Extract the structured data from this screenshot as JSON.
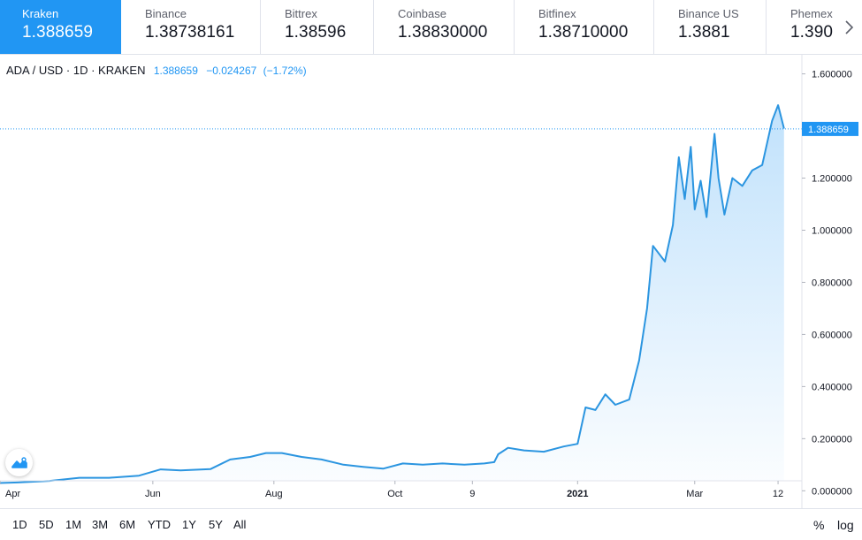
{
  "exchanges": [
    {
      "name": "Kraken",
      "price": "1.388659",
      "active": true
    },
    {
      "name": "Binance",
      "price": "1.38738161"
    },
    {
      "name": "Bittrex",
      "price": "1.38596"
    },
    {
      "name": "Coinbase",
      "price": "1.38830000"
    },
    {
      "name": "Bitfinex",
      "price": "1.38710000"
    },
    {
      "name": "Binance US",
      "price": "1.3881"
    },
    {
      "name": "Phemex",
      "price": "1.390"
    }
  ],
  "legend": {
    "symbol": "ADA / USD · 1D · KRAKEN",
    "last": "1.388659",
    "change": "−0.024267",
    "change_pct": "(−1.72%)"
  },
  "ranges": [
    "1D",
    "5D",
    "1M",
    "3M",
    "6M",
    "YTD",
    "1Y",
    "5Y",
    "All"
  ],
  "toolbar": {
    "percent_label": "%",
    "log_label": "log"
  },
  "colors": {
    "accent": "#2196f3",
    "line": "#2b95e0",
    "text": "#131722"
  },
  "icons": {
    "tabs_next": "chevron-right-icon",
    "logo": "tradingview-logo-icon"
  },
  "chart_data": {
    "type": "area",
    "title": "ADA / USD · 1D · KRAKEN",
    "xlabel": "",
    "ylabel": "",
    "ylim": [
      -0.06,
      1.68
    ],
    "y_ticks": [
      "1.600000",
      "1.400000",
      "1.200000",
      "1.000000",
      "0.800000",
      "0.600000",
      "0.400000",
      "0.200000",
      "0.000000"
    ],
    "x_ticks": [
      "Apr",
      "Jun",
      "Aug",
      "Oct",
      "9",
      "2021",
      "Mar",
      "12"
    ],
    "last_price_label": "1.388659",
    "last_price": 1.388659,
    "grid": false,
    "series": [
      {
        "x": [
          "2020-03-16",
          "2020-03-25",
          "2020-04-10",
          "2020-04-25",
          "2020-05-10",
          "2020-05-25",
          "2020-06-05",
          "2020-06-15",
          "2020-06-30",
          "2020-07-10",
          "2020-07-20",
          "2020-07-28",
          "2020-08-05",
          "2020-08-15",
          "2020-08-25",
          "2020-09-05",
          "2020-09-15",
          "2020-09-25",
          "2020-10-05",
          "2020-10-15",
          "2020-10-25",
          "2020-11-05",
          "2020-11-15",
          "2020-11-20",
          "2020-11-22",
          "2020-11-27",
          "2020-12-05",
          "2020-12-15",
          "2020-12-25",
          "2021-01-01",
          "2021-01-05",
          "2021-01-10",
          "2021-01-15",
          "2021-01-20",
          "2021-01-27",
          "2021-02-01",
          "2021-02-05",
          "2021-02-08",
          "2021-02-14",
          "2021-02-18",
          "2021-02-21",
          "2021-02-24",
          "2021-02-27",
          "2021-03-01",
          "2021-03-04",
          "2021-03-07",
          "2021-03-11",
          "2021-03-13",
          "2021-03-16",
          "2021-03-20",
          "2021-03-25",
          "2021-03-30",
          "2021-04-04",
          "2021-04-09",
          "2021-04-12",
          "2021-04-15"
        ],
        "y": [
          0.03,
          0.032,
          0.038,
          0.05,
          0.05,
          0.058,
          0.082,
          0.078,
          0.083,
          0.12,
          0.13,
          0.145,
          0.145,
          0.13,
          0.12,
          0.1,
          0.092,
          0.085,
          0.105,
          0.1,
          0.105,
          0.1,
          0.105,
          0.11,
          0.14,
          0.165,
          0.155,
          0.15,
          0.17,
          0.18,
          0.32,
          0.31,
          0.37,
          0.33,
          0.35,
          0.5,
          0.7,
          0.94,
          0.88,
          1.02,
          1.28,
          1.12,
          1.32,
          1.08,
          1.19,
          1.05,
          1.37,
          1.2,
          1.06,
          1.2,
          1.17,
          1.23,
          1.25,
          1.42,
          1.48,
          1.39
        ]
      }
    ]
  }
}
